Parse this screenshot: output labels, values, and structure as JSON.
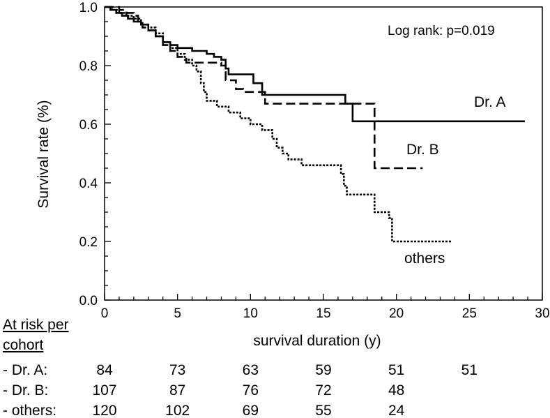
{
  "chart_data": {
    "type": "line",
    "title": "",
    "xlabel": "survival duration (y)",
    "ylabel": "Survival rate (%)",
    "xlim": [
      0,
      30
    ],
    "ylim": [
      0,
      1.0
    ],
    "x_ticks": [
      0,
      5,
      10,
      15,
      20,
      25,
      30
    ],
    "y_ticks": [
      0.0,
      0.2,
      0.4,
      0.6,
      0.8,
      1.0
    ],
    "x_tick_labels": [
      "0",
      "5",
      "10",
      "15",
      "20",
      "25",
      "30"
    ],
    "y_tick_labels": [
      "0.0",
      "0.2",
      "0.4",
      "0.6",
      "0.8",
      "1.0"
    ],
    "grid": false,
    "annotation": "Log rank: p=0.019",
    "series": [
      {
        "name": "Dr. A",
        "style": "solid",
        "points": [
          [
            0,
            1.0
          ],
          [
            0.4,
            0.99
          ],
          [
            0.8,
            0.98
          ],
          [
            1.2,
            0.97
          ],
          [
            1.6,
            0.96
          ],
          [
            2.0,
            0.95
          ],
          [
            2.5,
            0.94
          ],
          [
            3.0,
            0.92
          ],
          [
            3.5,
            0.9
          ],
          [
            4.0,
            0.88
          ],
          [
            4.5,
            0.87
          ],
          [
            5.0,
            0.86
          ],
          [
            6.0,
            0.85
          ],
          [
            7.0,
            0.84
          ],
          [
            7.5,
            0.83
          ],
          [
            8.0,
            0.82
          ],
          [
            8.3,
            0.79
          ],
          [
            8.5,
            0.77
          ],
          [
            10.2,
            0.74
          ],
          [
            10.8,
            0.7
          ],
          [
            16.5,
            0.67
          ],
          [
            17.0,
            0.61
          ],
          [
            28.8,
            0.61
          ]
        ]
      },
      {
        "name": "Dr. B",
        "style": "dashed",
        "points": [
          [
            0,
            1.0
          ],
          [
            1.0,
            0.99
          ],
          [
            1.5,
            0.98
          ],
          [
            2.0,
            0.97
          ],
          [
            2.3,
            0.95
          ],
          [
            2.6,
            0.93
          ],
          [
            3.0,
            0.92
          ],
          [
            3.5,
            0.9
          ],
          [
            4.0,
            0.87
          ],
          [
            4.5,
            0.85
          ],
          [
            5.0,
            0.83
          ],
          [
            5.6,
            0.81
          ],
          [
            8.0,
            0.8
          ],
          [
            8.3,
            0.75
          ],
          [
            9.0,
            0.72
          ],
          [
            9.5,
            0.71
          ],
          [
            11.0,
            0.67
          ],
          [
            18.5,
            0.67
          ],
          [
            18.5,
            0.45
          ],
          [
            21.8,
            0.45
          ]
        ]
      },
      {
        "name": "others",
        "style": "dotted",
        "points": [
          [
            0,
            1.0
          ],
          [
            0.5,
            0.99
          ],
          [
            1.0,
            0.98
          ],
          [
            1.5,
            0.97
          ],
          [
            2.0,
            0.96
          ],
          [
            2.5,
            0.94
          ],
          [
            3.0,
            0.93
          ],
          [
            3.5,
            0.91
          ],
          [
            4.0,
            0.88
          ],
          [
            4.5,
            0.86
          ],
          [
            5.0,
            0.84
          ],
          [
            5.5,
            0.82
          ],
          [
            6.0,
            0.8
          ],
          [
            6.3,
            0.78
          ],
          [
            6.6,
            0.74
          ],
          [
            6.8,
            0.71
          ],
          [
            7.0,
            0.68
          ],
          [
            7.7,
            0.66
          ],
          [
            8.5,
            0.64
          ],
          [
            9.3,
            0.62
          ],
          [
            10.0,
            0.6
          ],
          [
            10.8,
            0.58
          ],
          [
            11.5,
            0.55
          ],
          [
            11.8,
            0.52
          ],
          [
            12.2,
            0.5
          ],
          [
            12.6,
            0.48
          ],
          [
            13.5,
            0.46
          ],
          [
            16.2,
            0.43
          ],
          [
            16.4,
            0.39
          ],
          [
            16.6,
            0.36
          ],
          [
            18.5,
            0.3
          ],
          [
            19.5,
            0.28
          ],
          [
            19.7,
            0.2
          ],
          [
            23.8,
            0.2
          ]
        ]
      }
    ],
    "curve_labels": [
      {
        "name": "Dr. A",
        "text": "Dr. A"
      },
      {
        "name": "Dr. B",
        "text": "Dr. B"
      },
      {
        "name": "others",
        "text": "others"
      }
    ],
    "risk_table": {
      "title": "At risk per cohort",
      "title_lines": [
        "At risk per",
        "cohort"
      ],
      "times": [
        0,
        5,
        10,
        15,
        20,
        25
      ],
      "rows": [
        {
          "label": "- Dr. A:",
          "values": [
            "84",
            "73",
            "63",
            "59",
            "51",
            "51"
          ]
        },
        {
          "label": "- Dr. B:",
          "values": [
            "107",
            "87",
            "76",
            "72",
            "48",
            ""
          ]
        },
        {
          "label": "- others:",
          "values": [
            "120",
            "102",
            "69",
            "55",
            "24",
            ""
          ]
        }
      ]
    }
  }
}
